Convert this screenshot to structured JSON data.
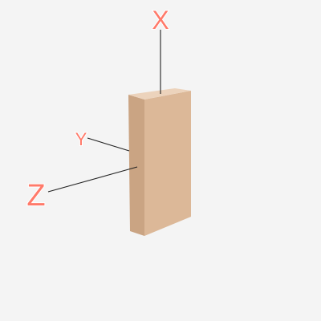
{
  "axes": [
    {
      "id": "x",
      "label": "X"
    },
    {
      "id": "y",
      "label": "Y"
    },
    {
      "id": "z",
      "label": "Z"
    }
  ],
  "colors": {
    "background": "#f4f4f4",
    "label": "#ff7a6a",
    "leader_line": "#222222",
    "box_front": "#dcb898",
    "box_side": "#caa483",
    "box_top": "#ecd3bc"
  }
}
